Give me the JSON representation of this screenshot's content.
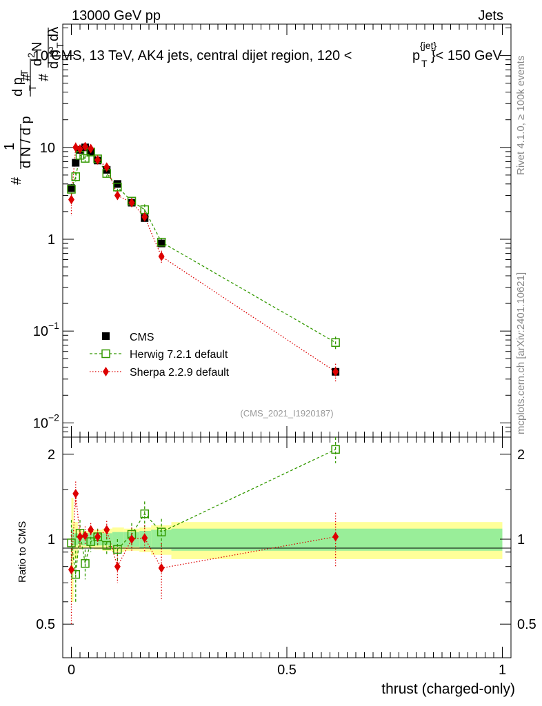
{
  "header": {
    "left": "13000 GeV pp",
    "right": "Jets"
  },
  "side": {
    "rivet": "Rivet 4.1.0, ≥ 100k events",
    "mcplots": "mcplots.cern.ch [arXiv:2401.10621]"
  },
  "chart_data": {
    "type": "scatter",
    "title": "CMS, 13 TeV, AK4 jets, central dijet region, 120 <",
    "title_sub": "T",
    "title_sup": "{jet}",
    "title_end": "}< 150 GeV",
    "title_p": "p",
    "analysis_tag": "(CMS_2021_I1920187)",
    "xlabel": "thrust (charged-only)",
    "ylabel_ratio": "Ratio to CMS",
    "ylabel": {
      "hash1": "#",
      "one": "1",
      "den1": "d N / d p",
      "den1_sub": "T",
      "hash2": "#",
      "num2": "d p",
      "num2_sub": "T",
      "hash3": "#",
      "num3": "d",
      "num3_sup": "2",
      "num3_end": "N",
      "den3": "d p",
      "den3_sub": "T",
      "den3_end": "dλ"
    },
    "xlim": [
      -0.02,
      1.02
    ],
    "ylim": [
      0.007,
      220
    ],
    "ratio_ylim": [
      0.38,
      2.3
    ],
    "yticks": [
      {
        "v": 0.01,
        "base": "10",
        "exp": "−2"
      },
      {
        "v": 0.1,
        "base": "10",
        "exp": "−1"
      },
      {
        "v": 1,
        "label": "1"
      },
      {
        "v": 10,
        "label": "10"
      },
      {
        "v": 100,
        "base": "10",
        "exp": "2"
      }
    ],
    "xticks": [
      {
        "v": 0,
        "label": "0"
      },
      {
        "v": 0.5,
        "label": "0.5"
      },
      {
        "v": 1,
        "label": "1"
      }
    ],
    "ratio_yticks": [
      {
        "v": 0.5,
        "label": "0.5"
      },
      {
        "v": 1,
        "label": "1"
      },
      {
        "v": 2,
        "label": "2"
      }
    ],
    "bins": [
      {
        "x": 0.0,
        "lo": 0.0,
        "hi": 0.005
      },
      {
        "x": 0.01,
        "lo": 0.005,
        "hi": 0.015
      },
      {
        "x": 0.02,
        "lo": 0.015,
        "hi": 0.025
      },
      {
        "x": 0.032,
        "lo": 0.025,
        "hi": 0.039
      },
      {
        "x": 0.045,
        "lo": 0.039,
        "hi": 0.052
      },
      {
        "x": 0.061,
        "lo": 0.052,
        "hi": 0.072
      },
      {
        "x": 0.082,
        "lo": 0.072,
        "hi": 0.095
      },
      {
        "x": 0.107,
        "lo": 0.095,
        "hi": 0.122
      },
      {
        "x": 0.14,
        "lo": 0.122,
        "hi": 0.158
      },
      {
        "x": 0.17,
        "lo": 0.158,
        "hi": 0.185
      },
      {
        "x": 0.209,
        "lo": 0.185,
        "hi": 0.232
      },
      {
        "x": 0.613,
        "lo": 0.232,
        "hi": 1.0
      }
    ],
    "series": [
      {
        "name": "CMS",
        "color": "#000000",
        "values": [
          3.6,
          6.8,
          9.4,
          10.0,
          9.0,
          7.2,
          5.7,
          4.0,
          2.5,
          1.7,
          0.9,
          0.036
        ]
      },
      {
        "name": "Herwig 7.2.1 default",
        "color": "#339900",
        "values": [
          3.5,
          4.8,
          8.2,
          7.6,
          8.9,
          7.5,
          5.2,
          3.7,
          2.6,
          2.1,
          0.93,
          0.075
        ],
        "errors": [
          0.5,
          0.6,
          0.7,
          0.6,
          0.6,
          0.5,
          0.4,
          0.3,
          0.25,
          0.3,
          0.1,
          0.012
        ],
        "ratio": [
          0.97,
          0.75,
          1.05,
          0.82,
          0.98,
          1.02,
          0.95,
          0.92,
          1.04,
          1.23,
          1.06,
          2.08
        ],
        "ratio_err": [
          0.2,
          0.16,
          0.12,
          0.1,
          0.08,
          0.07,
          0.07,
          0.08,
          0.1,
          0.13,
          0.12,
          0.22
        ]
      },
      {
        "name": "Sherpa 2.2.9 default",
        "color": "#dd0000",
        "values": [
          2.7,
          10.0,
          9.6,
          10.2,
          9.7,
          7.3,
          6.1,
          3.0,
          2.5,
          1.75,
          0.65,
          0.036
        ],
        "errors": [
          0.9,
          1.3,
          0.8,
          0.7,
          0.6,
          0.5,
          0.5,
          0.3,
          0.25,
          0.2,
          0.1,
          0.008
        ],
        "ratio": [
          0.78,
          1.45,
          1.02,
          1.03,
          1.08,
          1.02,
          1.08,
          0.8,
          1.0,
          1.01,
          0.79,
          1.02
        ],
        "ratio_err": [
          0.28,
          0.15,
          0.09,
          0.08,
          0.06,
          0.06,
          0.08,
          0.1,
          0.1,
          0.11,
          0.18,
          0.22
        ]
      }
    ],
    "bands": {
      "inner_color": "#99ee99",
      "outer_color": "#ffff99",
      "inner": [
        0.09,
        0.05,
        0.04,
        0.05,
        0.05,
        0.05,
        0.05,
        0.06,
        0.06,
        0.07,
        0.08,
        0.09
      ],
      "outer": [
        0.4,
        0.15,
        0.08,
        0.07,
        0.07,
        0.08,
        0.09,
        0.1,
        0.09,
        0.1,
        0.12,
        0.15
      ]
    }
  }
}
